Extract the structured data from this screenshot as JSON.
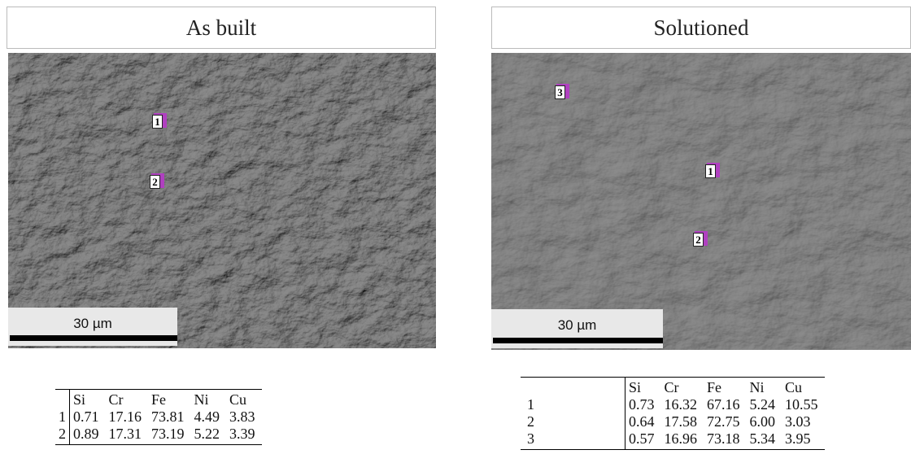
{
  "panels": [
    {
      "title": "As built",
      "markers": [
        "1",
        "2"
      ],
      "scale_bar": "30 µm",
      "table": {
        "header": [
          "Si",
          "Cr",
          "Fe",
          "Ni",
          "Cu"
        ],
        "rows": [
          [
            "1",
            "0.71",
            "17.16",
            "73.81",
            "4.49",
            "3.83"
          ],
          [
            "2",
            "0.89",
            "17.31",
            "73.19",
            "5.22",
            "3.39"
          ]
        ]
      }
    },
    {
      "title": "Solutioned",
      "markers": [
        "3",
        "1",
        "2"
      ],
      "scale_bar": "30 µm",
      "table": {
        "header": [
          "Si",
          "Cr",
          "Fe",
          "Ni",
          "Cu"
        ],
        "rows": [
          [
            "1",
            "0.73",
            "16.32",
            "67.16",
            "5.24",
            "10.55"
          ],
          [
            "2",
            "0.64",
            "17.58",
            "72.75",
            "6.00",
            "3.03"
          ],
          [
            "3",
            "0.57",
            "16.96",
            "73.18",
            "5.34",
            "3.95"
          ]
        ]
      }
    }
  ]
}
